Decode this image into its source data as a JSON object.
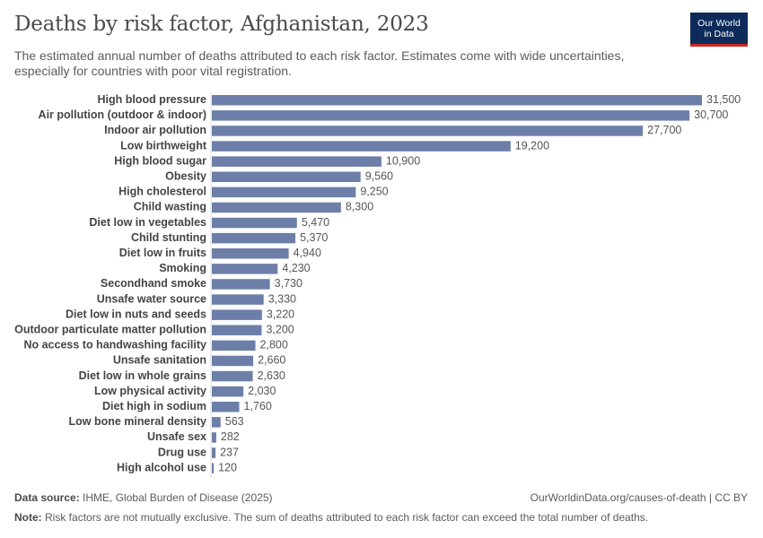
{
  "header": {
    "title": "Deaths by risk factor, Afghanistan, 2023",
    "subtitle": "The estimated annual number of deaths attributed to each risk factor. Estimates come with wide uncertainties, especially for countries with poor vital registration."
  },
  "logo": {
    "line1": "Our World",
    "line2": "in Data"
  },
  "footer": {
    "source_label": "Data source:",
    "source_text": "IHME, Global Burden of Disease (2025)",
    "url": "OurWorldinData.org/causes-of-death | CC BY",
    "note_label": "Note:",
    "note_text": "Risk factors are not mutually exclusive. The sum of deaths attributed to each risk factor can exceed the total number of deaths."
  },
  "chart_data": {
    "type": "bar",
    "orientation": "horizontal",
    "title": "Deaths by risk factor, Afghanistan, 2023",
    "xlabel": "",
    "ylabel": "",
    "xlim": [
      0,
      31500
    ],
    "bar_color": "#6d7fa8",
    "categories": [
      "High blood pressure",
      "Air pollution (outdoor & indoor)",
      "Indoor air pollution",
      "Low birthweight",
      "High blood sugar",
      "Obesity",
      "High cholesterol",
      "Child wasting",
      "Diet low in vegetables",
      "Child stunting",
      "Diet low in fruits",
      "Smoking",
      "Secondhand smoke",
      "Unsafe water source",
      "Diet low in nuts and seeds",
      "Outdoor particulate matter pollution",
      "No access to handwashing facility",
      "Unsafe sanitation",
      "Diet low in whole grains",
      "Low physical activity",
      "Diet high in sodium",
      "Low bone mineral density",
      "Unsafe sex",
      "Drug use",
      "High alcohol use"
    ],
    "values": [
      31500,
      30700,
      27700,
      19200,
      10900,
      9560,
      9250,
      8300,
      5470,
      5370,
      4940,
      4230,
      3730,
      3330,
      3220,
      3200,
      2800,
      2660,
      2630,
      2030,
      1760,
      563,
      282,
      237,
      120
    ],
    "value_labels": [
      "31,500",
      "30,700",
      "27,700",
      "19,200",
      "10,900",
      "9,560",
      "9,250",
      "8,300",
      "5,470",
      "5,370",
      "4,940",
      "4,230",
      "3,730",
      "3,330",
      "3,220",
      "3,200",
      "2,800",
      "2,660",
      "2,630",
      "2,030",
      "1,760",
      "563",
      "282",
      "237",
      "120"
    ]
  }
}
